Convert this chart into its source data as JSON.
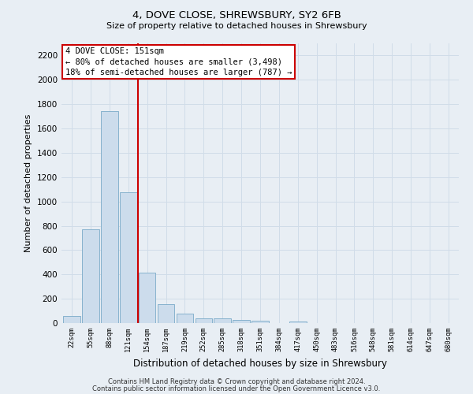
{
  "title": "4, DOVE CLOSE, SHREWSBURY, SY2 6FB",
  "subtitle": "Size of property relative to detached houses in Shrewsbury",
  "xlabel": "Distribution of detached houses by size in Shrewsbury",
  "ylabel": "Number of detached properties",
  "bin_labels": [
    "22sqm",
    "55sqm",
    "88sqm",
    "121sqm",
    "154sqm",
    "187sqm",
    "219sqm",
    "252sqm",
    "285sqm",
    "318sqm",
    "351sqm",
    "384sqm",
    "417sqm",
    "450sqm",
    "483sqm",
    "516sqm",
    "548sqm",
    "581sqm",
    "614sqm",
    "647sqm",
    "680sqm"
  ],
  "bar_values": [
    60,
    770,
    1745,
    1075,
    415,
    155,
    80,
    42,
    38,
    27,
    18,
    0,
    12,
    0,
    0,
    0,
    0,
    0,
    0,
    0,
    0
  ],
  "bar_color": "#ccdcec",
  "bar_edge_color": "#7aaac8",
  "vline_position": 3.5,
  "vline_color": "#cc0000",
  "annotation_text": "4 DOVE CLOSE: 151sqm\n← 80% of detached houses are smaller (3,498)\n18% of semi-detached houses are larger (787) →",
  "annotation_box_color": "#ffffff",
  "annotation_box_edge_color": "#cc0000",
  "ylim": [
    0,
    2300
  ],
  "yticks": [
    0,
    200,
    400,
    600,
    800,
    1000,
    1200,
    1400,
    1600,
    1800,
    2000,
    2200
  ],
  "footer_line1": "Contains HM Land Registry data © Crown copyright and database right 2024.",
  "footer_line2": "Contains public sector information licensed under the Open Government Licence v3.0.",
  "grid_color": "#d0dce8",
  "bg_color": "#e8eef4",
  "title_fontsize": 9.5,
  "subtitle_fontsize": 8.0
}
